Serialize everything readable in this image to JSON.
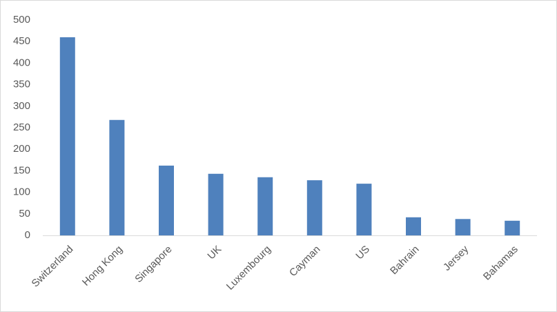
{
  "chart_data": {
    "type": "bar",
    "categories": [
      "Switzerland",
      "Hong Kong",
      "Singapore",
      "UK",
      "Luxembourg",
      "Cayman",
      "US",
      "Bahrain",
      "Jersey",
      "Bahamas"
    ],
    "values": [
      460,
      268,
      162,
      143,
      135,
      128,
      120,
      42,
      38,
      34
    ],
    "color": "#4f81bd",
    "ylim": [
      0,
      500
    ],
    "yticks": [
      0,
      50,
      100,
      150,
      200,
      250,
      300,
      350,
      400,
      450,
      500
    ],
    "grid": false
  }
}
